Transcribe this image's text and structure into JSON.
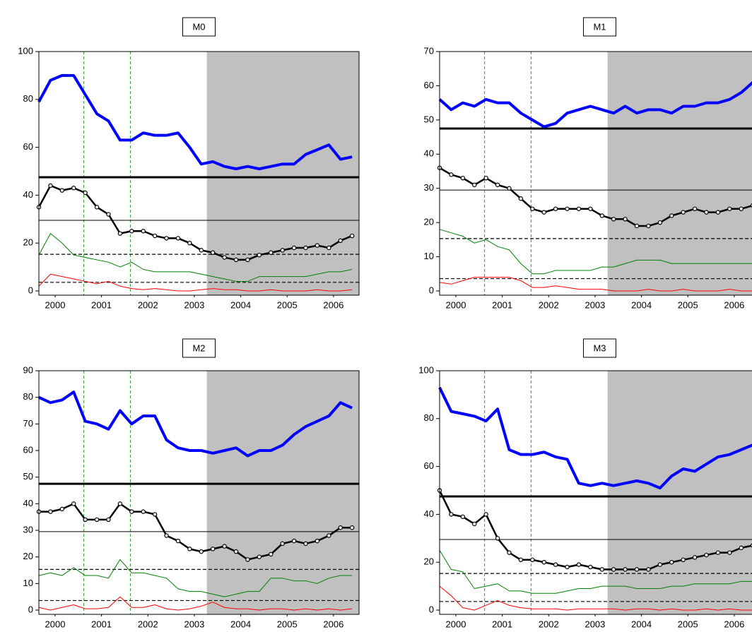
{
  "chart_data": [
    {
      "type": "line",
      "title": "M0",
      "x": [
        2000.15,
        2000.4,
        2000.65,
        2000.9,
        2001.15,
        2001.4,
        2001.65,
        2001.9,
        2002.15,
        2002.4,
        2002.65,
        2002.9,
        2003.15,
        2003.4,
        2003.65,
        2003.9,
        2004.15,
        2004.4,
        2004.65,
        2004.9,
        2005.15,
        2005.4,
        2005.65,
        2005.9,
        2006.15,
        2006.4,
        2006.65,
        2006.9
      ],
      "xlim": [
        2000.15,
        2007.05
      ],
      "xticks": [
        {
          "value": 2000.5,
          "label": "2000"
        },
        {
          "value": 2001.5,
          "label": "2001"
        },
        {
          "value": 2002.5,
          "label": "2002"
        },
        {
          "value": 2003.5,
          "label": "2003"
        },
        {
          "value": 2004.5,
          "label": "2004"
        },
        {
          "value": 2005.5,
          "label": "2005"
        },
        {
          "value": 2006.5,
          "label": "2006"
        }
      ],
      "ylim": [
        0,
        100
      ],
      "yticks": [
        0,
        20,
        40,
        60,
        80,
        100
      ],
      "shade": [
        2003.77,
        2007.05
      ],
      "vlines": [
        2001.12,
        2002.12
      ],
      "reference_lines": [
        {
          "value": 47.5,
          "style": "thick"
        },
        {
          "value": 29.5,
          "style": "thin"
        },
        {
          "value": 15.3,
          "style": "dashed"
        },
        {
          "value": 3.6,
          "style": "dashed"
        }
      ],
      "series": [
        {
          "color": "#0000ff",
          "line_width": 4,
          "values": [
            79,
            88,
            90,
            90,
            82,
            74,
            71,
            63,
            63,
            66,
            65,
            65,
            66,
            60,
            53,
            54,
            52,
            51,
            52,
            51,
            52,
            53,
            53,
            57,
            59,
            61,
            55,
            56
          ]
        },
        {
          "color": "#000000",
          "line_width": 2.5,
          "marker": "circle",
          "values": [
            35,
            44,
            42,
            43,
            41,
            35,
            32,
            24,
            25,
            25,
            23,
            22,
            22,
            20,
            17,
            16,
            14,
            13,
            13,
            15,
            16,
            17,
            18,
            18,
            19,
            18,
            21,
            23
          ]
        },
        {
          "color": "#008000",
          "line_width": 1,
          "values": [
            15,
            24,
            20,
            15,
            14,
            13,
            12,
            10,
            12,
            9,
            8,
            8,
            8,
            8,
            7,
            6,
            5,
            4,
            4,
            6,
            6,
            6,
            6,
            6,
            7,
            8,
            8,
            9
          ]
        },
        {
          "color": "#ff0000",
          "line_width": 1,
          "values": [
            2,
            7,
            6,
            5,
            4,
            3,
            4,
            2,
            1,
            0.5,
            1,
            0.5,
            0,
            0,
            0.5,
            1,
            0.5,
            0.5,
            0,
            0,
            0.5,
            0,
            0,
            0,
            0.5,
            0,
            0,
            0.5
          ]
        }
      ]
    },
    {
      "type": "line",
      "title": "M1",
      "x": [
        2000.15,
        2000.4,
        2000.65,
        2000.9,
        2001.15,
        2001.4,
        2001.65,
        2001.9,
        2002.15,
        2002.4,
        2002.65,
        2002.9,
        2003.15,
        2003.4,
        2003.65,
        2003.9,
        2004.15,
        2004.4,
        2004.65,
        2004.9,
        2005.15,
        2005.4,
        2005.65,
        2005.9,
        2006.15,
        2006.4,
        2006.65,
        2006.9
      ],
      "xlim": [
        2000.15,
        2007.05
      ],
      "xticks": [
        {
          "value": 2000.5,
          "label": "2000"
        },
        {
          "value": 2001.5,
          "label": "2001"
        },
        {
          "value": 2002.5,
          "label": "2002"
        },
        {
          "value": 2003.5,
          "label": "2003"
        },
        {
          "value": 2004.5,
          "label": "2004"
        },
        {
          "value": 2005.5,
          "label": "2005"
        },
        {
          "value": 2006.5,
          "label": "2006"
        }
      ],
      "ylim": [
        0,
        70
      ],
      "yticks": [
        0,
        10,
        20,
        30,
        40,
        50,
        60,
        70
      ],
      "shade": [
        2003.77,
        2007.05
      ],
      "vlines": [
        2001.12,
        2002.12
      ],
      "reference_lines": [
        {
          "value": 47.5,
          "style": "thick"
        },
        {
          "value": 29.5,
          "style": "thin"
        },
        {
          "value": 15.3,
          "style": "dashed"
        },
        {
          "value": 3.6,
          "style": "dashed"
        }
      ],
      "series": [
        {
          "color": "#0000ff",
          "line_width": 4,
          "values": [
            56,
            53,
            55,
            54,
            56,
            55,
            55,
            52,
            50,
            48,
            49,
            52,
            53,
            54,
            53,
            52,
            54,
            52,
            53,
            53,
            52,
            54,
            54,
            55,
            55,
            56,
            58,
            61
          ]
        },
        {
          "color": "#000000",
          "line_width": 2.5,
          "marker": "circle",
          "values": [
            36,
            34,
            33,
            31,
            33,
            31,
            30,
            27,
            24,
            23,
            24,
            24,
            24,
            24,
            22,
            21,
            21,
            19,
            19,
            20,
            22,
            23,
            24,
            23,
            23,
            24,
            24,
            25
          ]
        },
        {
          "color": "#008000",
          "line_width": 1,
          "values": [
            18,
            17,
            16,
            14,
            15,
            13,
            12,
            8,
            5,
            5,
            6,
            6,
            6,
            6,
            7,
            7,
            8,
            9,
            9,
            9,
            8,
            8,
            8,
            8,
            8,
            8,
            8,
            8
          ]
        },
        {
          "color": "#ff0000",
          "line_width": 1,
          "values": [
            2.5,
            2,
            3,
            4,
            4,
            4,
            4,
            3,
            1,
            1,
            1.5,
            1,
            0.5,
            0.5,
            0.5,
            0,
            0,
            0,
            0.5,
            0,
            0,
            0.5,
            0,
            0,
            0,
            0.5,
            0,
            0
          ]
        }
      ]
    },
    {
      "type": "line",
      "title": "M2",
      "x": [
        2000.15,
        2000.4,
        2000.65,
        2000.9,
        2001.15,
        2001.4,
        2001.65,
        2001.9,
        2002.15,
        2002.4,
        2002.65,
        2002.9,
        2003.15,
        2003.4,
        2003.65,
        2003.9,
        2004.15,
        2004.4,
        2004.65,
        2004.9,
        2005.15,
        2005.4,
        2005.65,
        2005.9,
        2006.15,
        2006.4,
        2006.65,
        2006.9
      ],
      "xlim": [
        2000.15,
        2007.05
      ],
      "xticks": [
        {
          "value": 2000.5,
          "label": "2000"
        },
        {
          "value": 2001.5,
          "label": "2001"
        },
        {
          "value": 2002.5,
          "label": "2002"
        },
        {
          "value": 2003.5,
          "label": "2003"
        },
        {
          "value": 2004.5,
          "label": "2004"
        },
        {
          "value": 2005.5,
          "label": "2005"
        },
        {
          "value": 2006.5,
          "label": "2006"
        }
      ],
      "ylim": [
        0,
        90
      ],
      "yticks": [
        0,
        10,
        20,
        30,
        40,
        50,
        60,
        70,
        80,
        90
      ],
      "shade": [
        2003.77,
        2007.05
      ],
      "vlines": [
        2001.12,
        2002.12
      ],
      "reference_lines": [
        {
          "value": 47.5,
          "style": "thick"
        },
        {
          "value": 29.5,
          "style": "thin"
        },
        {
          "value": 15.3,
          "style": "dashed"
        },
        {
          "value": 3.6,
          "style": "dashed"
        }
      ],
      "series": [
        {
          "color": "#0000ff",
          "line_width": 4,
          "values": [
            80,
            78,
            79,
            82,
            71,
            70,
            68,
            75,
            70,
            73,
            73,
            64,
            61,
            60,
            60,
            59,
            60,
            61,
            58,
            60,
            60,
            62,
            66,
            69,
            71,
            73,
            78,
            76
          ]
        },
        {
          "color": "#000000",
          "line_width": 2.5,
          "marker": "circle",
          "values": [
            37,
            37,
            38,
            40,
            34,
            34,
            34,
            40,
            37,
            37,
            36,
            28,
            26,
            23,
            22,
            23,
            24,
            22,
            19,
            20,
            21,
            25,
            26,
            25,
            26,
            28,
            31,
            31
          ]
        },
        {
          "color": "#008000",
          "line_width": 1,
          "values": [
            13,
            14,
            13,
            16,
            13,
            13,
            12,
            19,
            14,
            14,
            13,
            12,
            8,
            7,
            7,
            6,
            5,
            6,
            7,
            7,
            12,
            12,
            11,
            11,
            10,
            12,
            13,
            13
          ]
        },
        {
          "color": "#ff0000",
          "line_width": 1,
          "values": [
            1,
            0,
            1,
            2,
            0.5,
            0.5,
            1,
            5,
            1,
            1,
            2,
            0.5,
            0,
            0.5,
            1.5,
            3,
            1,
            0.5,
            0.5,
            0,
            0.5,
            0.5,
            0,
            0.5,
            0,
            0.5,
            0,
            0.5
          ]
        }
      ]
    },
    {
      "type": "line",
      "title": "M3",
      "x": [
        2000.15,
        2000.4,
        2000.65,
        2000.9,
        2001.15,
        2001.4,
        2001.65,
        2001.9,
        2002.15,
        2002.4,
        2002.65,
        2002.9,
        2003.15,
        2003.4,
        2003.65,
        2003.9,
        2004.15,
        2004.4,
        2004.65,
        2004.9,
        2005.15,
        2005.4,
        2005.65,
        2005.9,
        2006.15,
        2006.4,
        2006.65,
        2006.9
      ],
      "xlim": [
        2000.15,
        2007.05
      ],
      "xticks": [
        {
          "value": 2000.5,
          "label": "2000"
        },
        {
          "value": 2001.5,
          "label": "2001"
        },
        {
          "value": 2002.5,
          "label": "2002"
        },
        {
          "value": 2003.5,
          "label": "2003"
        },
        {
          "value": 2004.5,
          "label": "2004"
        },
        {
          "value": 2005.5,
          "label": "2005"
        },
        {
          "value": 2006.5,
          "label": "2006"
        }
      ],
      "ylim": [
        0,
        100
      ],
      "yticks": [
        0,
        20,
        40,
        60,
        80,
        100
      ],
      "shade": [
        2003.77,
        2007.05
      ],
      "vlines": [
        2001.12,
        2002.12
      ],
      "reference_lines": [
        {
          "value": 47.5,
          "style": "thick"
        },
        {
          "value": 29.5,
          "style": "thin"
        },
        {
          "value": 15.3,
          "style": "dashed"
        },
        {
          "value": 3.6,
          "style": "dashed"
        }
      ],
      "series": [
        {
          "color": "#0000ff",
          "line_width": 4,
          "values": [
            93,
            83,
            82,
            81,
            79,
            84,
            67,
            65,
            65,
            66,
            64,
            63,
            53,
            52,
            53,
            52,
            53,
            54,
            53,
            51,
            56,
            59,
            58,
            61,
            64,
            65,
            67,
            69
          ]
        },
        {
          "color": "#000000",
          "line_width": 2.5,
          "marker": "circle",
          "values": [
            50,
            40,
            39,
            36,
            40,
            30,
            24,
            21,
            21,
            20,
            19,
            18,
            19,
            18,
            17,
            17,
            17,
            17,
            17,
            19,
            20,
            21,
            22,
            23,
            24,
            24,
            26,
            27
          ]
        },
        {
          "color": "#008000",
          "line_width": 1,
          "values": [
            25,
            17,
            16,
            9,
            10,
            11,
            8,
            8,
            7,
            7,
            7,
            8,
            9,
            9,
            10,
            10,
            10,
            9,
            9,
            9,
            10,
            10,
            11,
            11,
            11,
            11,
            12,
            12
          ]
        },
        {
          "color": "#ff0000",
          "line_width": 1,
          "values": [
            10,
            6,
            1,
            0,
            2,
            4,
            2,
            1,
            0.5,
            0.5,
            0.5,
            0,
            0.5,
            0.5,
            0.5,
            0.5,
            0,
            0.5,
            0.5,
            0,
            0.5,
            0,
            0,
            0.5,
            0,
            0.5,
            0,
            0
          ]
        }
      ]
    }
  ]
}
